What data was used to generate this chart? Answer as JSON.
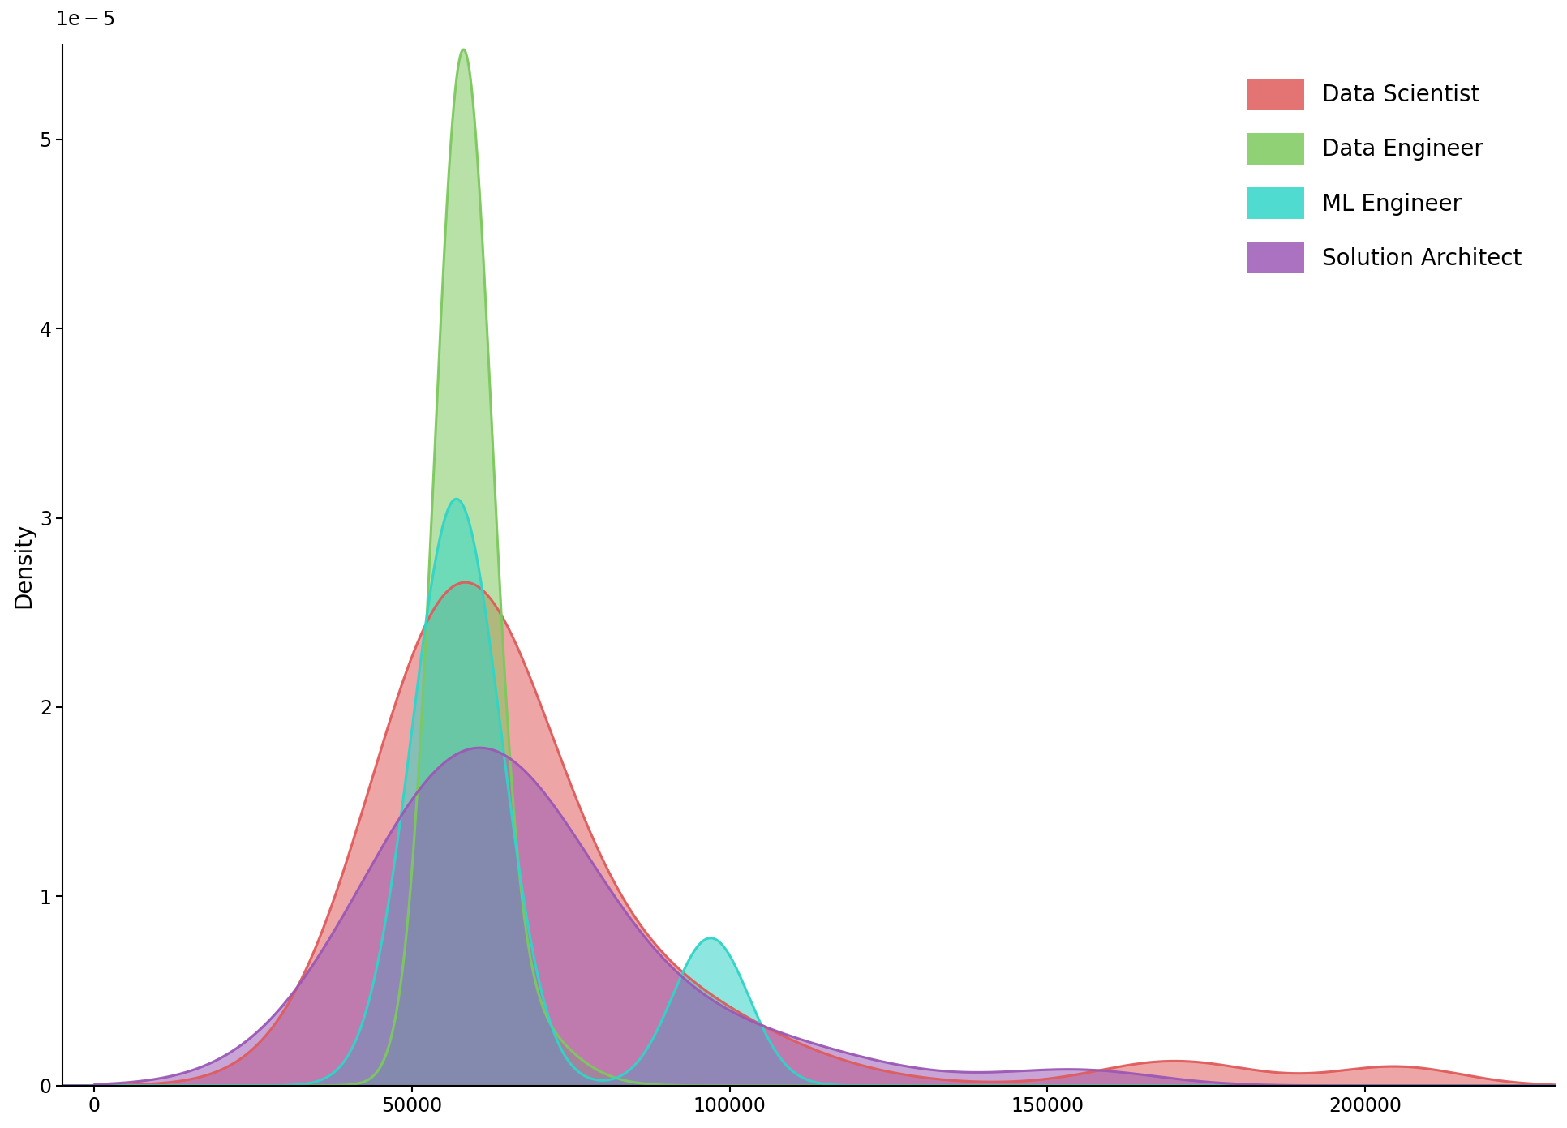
{
  "ylabel": "Density",
  "xlabel": "",
  "xlim": [
    -5000,
    230000
  ],
  "ylim": [
    0,
    5.5e-05
  ],
  "yticks": [
    0,
    1e-05,
    2e-05,
    3e-05,
    4e-05,
    5e-05
  ],
  "ytick_labels": [
    "0",
    "1",
    "2",
    "3",
    "4",
    "5"
  ],
  "xticks": [
    0,
    50000,
    100000,
    150000,
    200000
  ],
  "xtick_labels": [
    "0",
    "50000",
    "100000",
    "150000",
    "200000"
  ],
  "series": [
    {
      "label": "Data Scientist",
      "color": "#E05C5C",
      "alpha": 0.55
    },
    {
      "label": "Data Engineer",
      "color": "#7DC95E",
      "alpha": 0.55
    },
    {
      "label": "ML Engineer",
      "color": "#30D5C8",
      "alpha": 0.55
    },
    {
      "label": "Solution Architect",
      "color": "#9B59B6",
      "alpha": 0.55
    }
  ],
  "background_color": "#ffffff",
  "legend_fontsize": 20,
  "axis_fontsize": 20,
  "tick_fontsize": 17,
  "figsize": [
    19.33,
    13.91
  ],
  "dpi": 100
}
